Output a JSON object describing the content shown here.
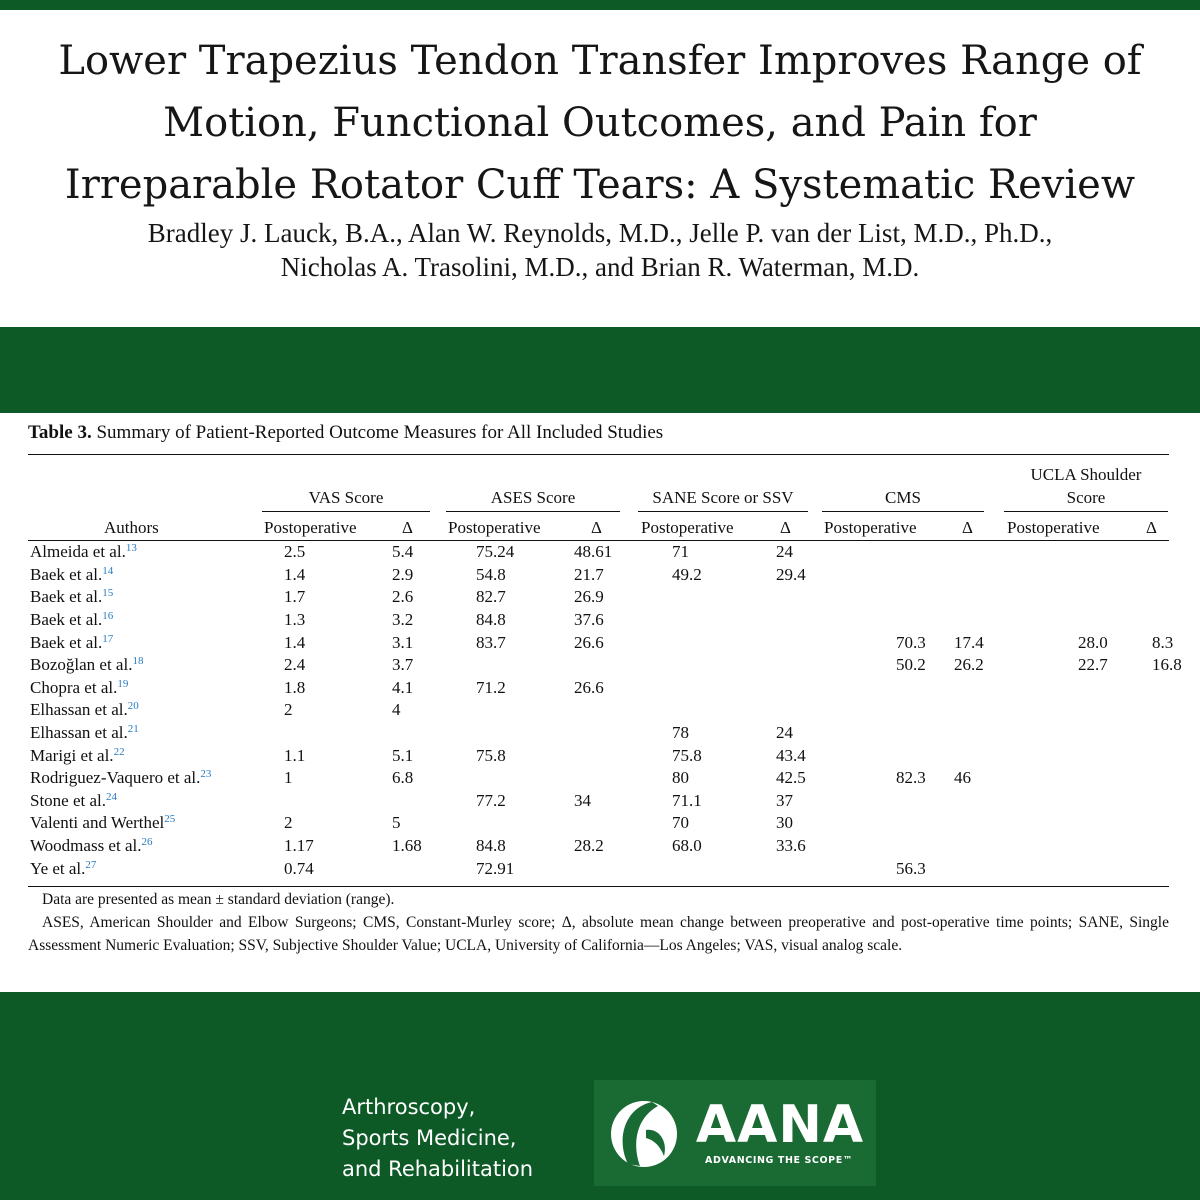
{
  "paper": {
    "title_lines": [
      "Lower Trapezius Tendon Transfer Improves Range of",
      "Motion, Functional Outcomes, and Pain for",
      "Irreparable Rotator Cuff Tears: A Systematic Review"
    ],
    "author_lines": [
      "Bradley J. Lauck, B.A., Alan W. Reynolds, M.D., Jelle P. van der List, M.D., Ph.D.,",
      "Nicholas A. Trasolini, M.D., and Brian R. Waterman, M.D."
    ]
  },
  "table": {
    "label": "Table 3.",
    "caption": "Summary of Patient-Reported Outcome Measures for All Included Studies",
    "authors_header": "Authors",
    "groups": [
      {
        "label": "VAS Score"
      },
      {
        "label": "ASES Score"
      },
      {
        "label": "SANE Score or SSV"
      },
      {
        "label": "CMS"
      },
      {
        "label_lines": [
          "UCLA Shoulder",
          "Score"
        ]
      }
    ],
    "sub_headers": {
      "post": "Postoperative",
      "delta": "Δ"
    },
    "rows": [
      {
        "author": "Almeida et al.",
        "ref": "13",
        "vals": [
          "2.5",
          "5.4",
          "75.24",
          "48.61",
          "71",
          "24",
          "",
          "",
          "",
          ""
        ]
      },
      {
        "author": "Baek et al.",
        "ref": "14",
        "vals": [
          "1.4",
          "2.9",
          "54.8",
          "21.7",
          "49.2",
          "29.4",
          "",
          "",
          "",
          ""
        ]
      },
      {
        "author": "Baek et al.",
        "ref": "15",
        "vals": [
          "1.7",
          "2.6",
          "82.7",
          "26.9",
          "",
          "",
          "",
          "",
          "",
          ""
        ]
      },
      {
        "author": "Baek et al.",
        "ref": "16",
        "vals": [
          "1.3",
          "3.2",
          "84.8",
          "37.6",
          "",
          "",
          "",
          "",
          "",
          ""
        ]
      },
      {
        "author": "Baek et al.",
        "ref": "17",
        "vals": [
          "1.4",
          "3.1",
          "83.7",
          "26.6",
          "",
          "",
          "70.3",
          "17.4",
          "28.0",
          "8.3"
        ]
      },
      {
        "author": "Bozoğlan et al.",
        "ref": "18",
        "vals": [
          "2.4",
          "3.7",
          "",
          "",
          "",
          "",
          "50.2",
          "26.2",
          "22.7",
          "16.8"
        ]
      },
      {
        "author": "Chopra et al.",
        "ref": "19",
        "vals": [
          "1.8",
          "4.1",
          "71.2",
          "26.6",
          "",
          "",
          "",
          "",
          "",
          ""
        ]
      },
      {
        "author": "Elhassan et al.",
        "ref": "20",
        "vals": [
          "2",
          "4",
          "",
          "",
          "",
          "",
          "",
          "",
          "",
          ""
        ]
      },
      {
        "author": "Elhassan et al.",
        "ref": "21",
        "vals": [
          "",
          "",
          "",
          "",
          "78",
          "24",
          "",
          "",
          "",
          ""
        ]
      },
      {
        "author": "Marigi et al.",
        "ref": "22",
        "vals": [
          "1.1",
          "5.1",
          "75.8",
          "",
          "75.8",
          "43.4",
          "",
          "",
          "",
          ""
        ]
      },
      {
        "author": "Rodriguez-Vaquero et al.",
        "ref": "23",
        "vals": [
          "1",
          "6.8",
          "",
          "",
          "80",
          "42.5",
          "82.3",
          "46",
          "",
          ""
        ]
      },
      {
        "author": "Stone et al.",
        "ref": "24",
        "vals": [
          "",
          "",
          "77.2",
          "34",
          "71.1",
          "37",
          "",
          "",
          "",
          ""
        ]
      },
      {
        "author": "Valenti and Werthel",
        "ref": "25",
        "vals": [
          "2",
          "5",
          "",
          "",
          "70",
          "30",
          "",
          "",
          "",
          ""
        ]
      },
      {
        "author": "Woodmass et al.",
        "ref": "26",
        "vals": [
          "1.17",
          "1.68",
          "84.8",
          "28.2",
          "68.0",
          "33.6",
          "",
          "",
          "",
          ""
        ]
      },
      {
        "author": "Ye et al.",
        "ref": "27",
        "vals": [
          "0.74",
          "",
          "72.91",
          "",
          "",
          "",
          "56.3",
          "",
          "",
          ""
        ]
      }
    ],
    "footnote_1": "Data are presented as mean ± standard deviation (range).",
    "footnote_2": "ASES, American Shoulder and Elbow Surgeons; CMS, Constant-Murley score; Δ, absolute mean change between preoperative and post-operative time points; SANE, Single Assessment Numeric Evaluation; SSV, Subjective Shoulder Value; UCLA, University of California—Los Angeles; VAS, visual analog scale."
  },
  "footer": {
    "journal_lines": [
      "Arthroscopy,",
      "Sports Medicine,",
      "and Rehabilitation"
    ],
    "logo_name": "AANA",
    "logo_tagline": "ADVANCING THE SCOPE™",
    "logo_icon": "aana-swoosh-icon"
  },
  "colors": {
    "brand_green": "#0d5a26",
    "logo_box_green": "#1a6a34",
    "reference_blue": "#2a7bbf"
  }
}
